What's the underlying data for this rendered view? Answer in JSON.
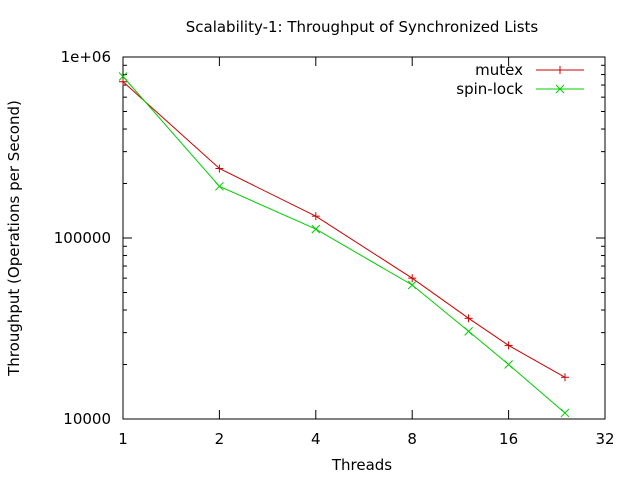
{
  "chart_data": {
    "type": "line",
    "title": "Scalability-1: Throughput of Synchronized Lists",
    "xlabel": "Threads",
    "ylabel": "Throughput (Operations per Second)",
    "x_scale": "log2",
    "y_scale": "log10",
    "xlim": [
      1,
      32
    ],
    "ylim": [
      10000,
      1000000
    ],
    "x_ticks": [
      1,
      2,
      4,
      8,
      16,
      32
    ],
    "x_tick_labels": [
      "1",
      "2",
      "4",
      "8",
      "16",
      "32"
    ],
    "y_ticks": [
      10000,
      100000,
      1000000
    ],
    "y_tick_labels": [
      "10000",
      "100000",
      "1e+06"
    ],
    "legend_position": "top-right",
    "grid": false,
    "series": [
      {
        "name": "mutex",
        "color": "#cc0000",
        "marker": "plus",
        "points": [
          [
            1,
            730000
          ],
          [
            2,
            242000
          ],
          [
            4,
            132000
          ],
          [
            8,
            60000
          ],
          [
            12,
            36000
          ],
          [
            16,
            25500
          ],
          [
            24,
            17000
          ]
        ]
      },
      {
        "name": "spin-lock",
        "color": "#00cc00",
        "marker": "cross",
        "points": [
          [
            1,
            780000
          ],
          [
            2,
            193000
          ],
          [
            4,
            112000
          ],
          [
            8,
            55000
          ],
          [
            12,
            30500
          ],
          [
            16,
            20000
          ],
          [
            24,
            10800
          ]
        ]
      }
    ]
  }
}
